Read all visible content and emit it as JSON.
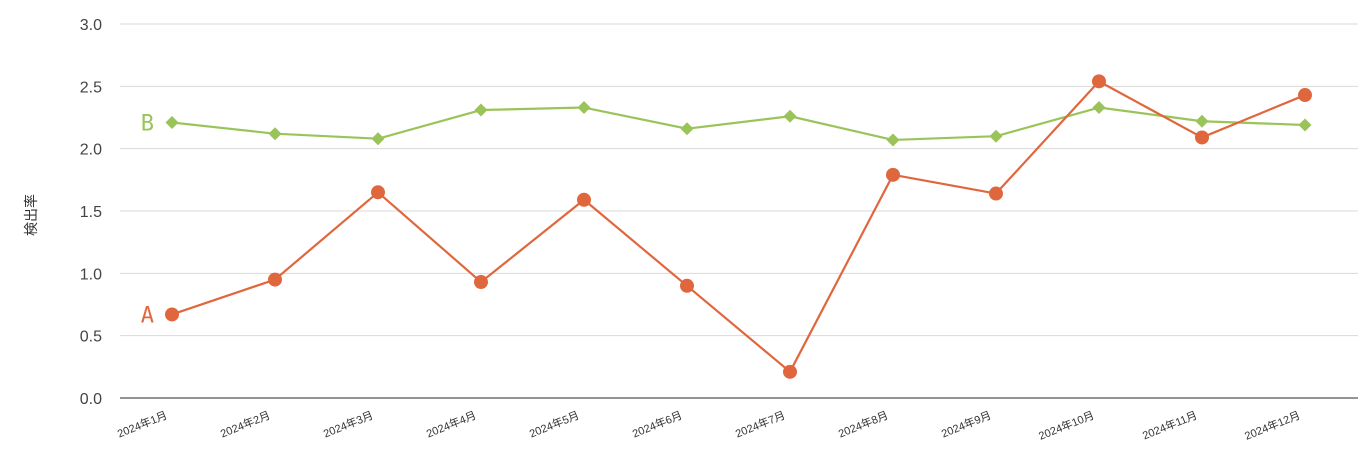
{
  "chart_data": {
    "type": "line",
    "ylabel": "検出率",
    "xlabel": "",
    "title": "",
    "ylim": [
      0,
      3.0
    ],
    "yticks": [
      "0.0",
      "0.5",
      "1.0",
      "1.5",
      "2.0",
      "2.5",
      "3.0"
    ],
    "categories": [
      "2024年1月",
      "2024年2月",
      "2024年3月",
      "2024年4月",
      "2024年5月",
      "2024年6月",
      "2024年7月",
      "2024年8月",
      "2024年9月",
      "2024年10月",
      "2024年11月",
      "2024年12月"
    ],
    "grid": true,
    "series": [
      {
        "name": "A",
        "color": "#e0673d",
        "marker": "circle",
        "values": [
          0.67,
          0.95,
          1.65,
          0.93,
          1.59,
          0.9,
          0.21,
          1.79,
          1.64,
          2.54,
          2.09,
          2.43
        ]
      },
      {
        "name": "B",
        "color": "#9ac45a",
        "marker": "diamond",
        "values": [
          2.21,
          2.12,
          2.08,
          2.31,
          2.33,
          2.16,
          2.26,
          2.07,
          2.1,
          2.33,
          2.22,
          2.19
        ]
      }
    ]
  }
}
